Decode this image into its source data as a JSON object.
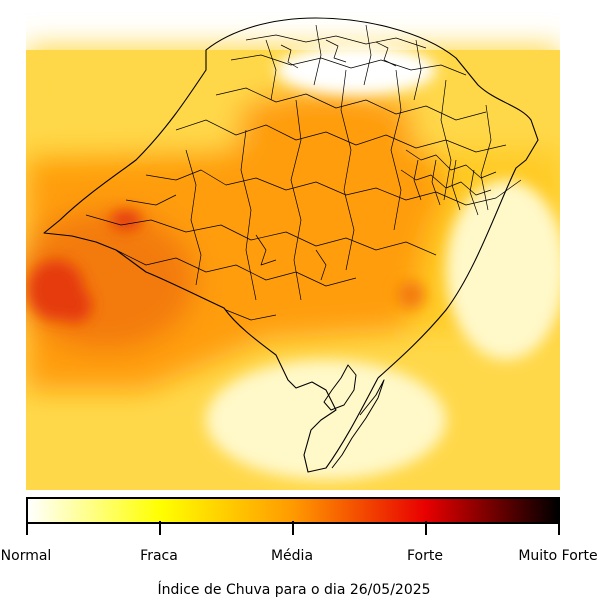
{
  "title": "Índice de Chuva para o dia 26/05/2025",
  "legend": {
    "labels": [
      "Normal",
      "Fraca",
      "Média",
      "Forte",
      "Muito Forte"
    ],
    "colors": [
      "#ffffff",
      "#ffff00",
      "#ff9a00",
      "#e80000",
      "#000000"
    ]
  },
  "palette": {
    "very_light": "#fff8c8",
    "light": "#ffd84a",
    "fraca": "#ffca20",
    "media": "#ff9d10",
    "media_strong": "#f37a0c",
    "forte": "#e53a0c",
    "border": "#000000"
  }
}
